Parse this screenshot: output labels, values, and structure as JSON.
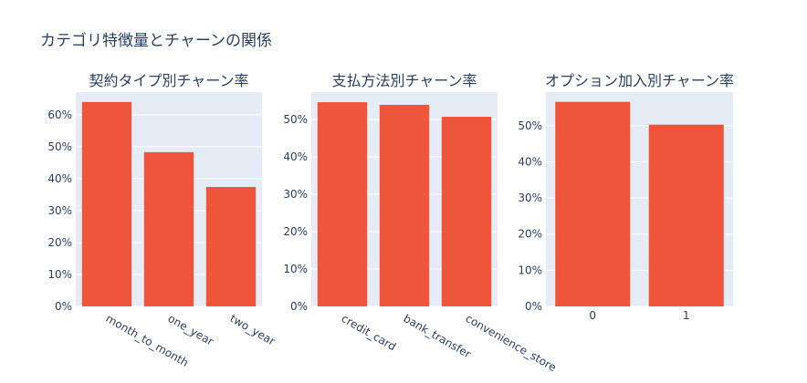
{
  "title": "カテゴリ特徴量とチャーンの関係",
  "chart_data": [
    {
      "type": "bar",
      "title": "契約タイプ別チャーン率",
      "categories": [
        "month_to_month",
        "one_year",
        "two_year"
      ],
      "values": [
        64,
        48.3,
        37.4
      ],
      "color": "#EF553B",
      "ylim": [
        0,
        67.1
      ],
      "yticks": [
        {
          "value": 0,
          "label": "0%"
        },
        {
          "value": 10,
          "label": "10%"
        },
        {
          "value": 20,
          "label": "20%"
        },
        {
          "value": 30,
          "label": "30%"
        },
        {
          "value": 40,
          "label": "40%"
        },
        {
          "value": 50,
          "label": "50%"
        },
        {
          "value": 60,
          "label": "60%"
        }
      ],
      "grid": true,
      "xtick_angle": 30
    },
    {
      "type": "bar",
      "title": "支払方法別チャーン率",
      "categories": [
        "credit_card",
        "bank_transfer",
        "convenience_store"
      ],
      "values": [
        54.6,
        53.9,
        50.7
      ],
      "color": "#EF553B",
      "ylim": [
        0,
        57.3
      ],
      "yticks": [
        {
          "value": 0,
          "label": "0%"
        },
        {
          "value": 10,
          "label": "10%"
        },
        {
          "value": 20,
          "label": "20%"
        },
        {
          "value": 30,
          "label": "30%"
        },
        {
          "value": 40,
          "label": "40%"
        },
        {
          "value": 50,
          "label": "50%"
        }
      ],
      "grid": true,
      "xtick_angle": 30
    },
    {
      "type": "bar",
      "title": "オプション加入別チャーン率",
      "categories": [
        "0",
        "1"
      ],
      "values": [
        56.6,
        50.3
      ],
      "color": "#EF553B",
      "ylim": [
        0,
        59.3
      ],
      "yticks": [
        {
          "value": 0,
          "label": "0%"
        },
        {
          "value": 10,
          "label": "10%"
        },
        {
          "value": 20,
          "label": "20%"
        },
        {
          "value": 30,
          "label": "30%"
        },
        {
          "value": 40,
          "label": "40%"
        },
        {
          "value": 50,
          "label": "50%"
        }
      ],
      "grid": true,
      "xtick_angle": 0
    }
  ]
}
